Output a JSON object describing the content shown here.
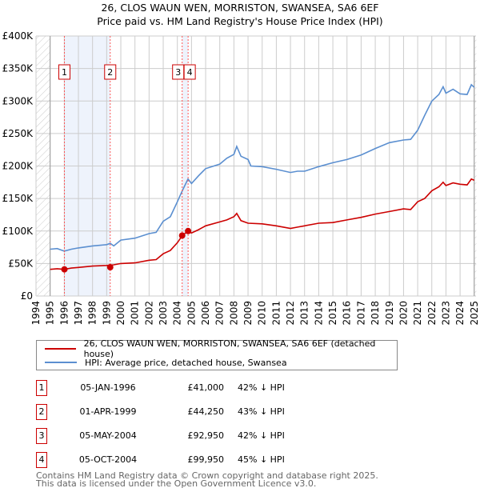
{
  "chart_data": {
    "type": "line",
    "title": "26, CLOS WAUN WEN, MORRISTON, SWANSEA, SA6 6EF",
    "subtitle": "Price paid vs. HM Land Registry's House Price Index (HPI)",
    "xlabel": "",
    "ylabel": "",
    "xlim": [
      1994,
      2025
    ],
    "ylim": [
      0,
      400000
    ],
    "x_ticks": [
      "1994",
      "1995",
      "1996",
      "1997",
      "1998",
      "1999",
      "2000",
      "2001",
      "2002",
      "2003",
      "2004",
      "2005",
      "2006",
      "2007",
      "2008",
      "2009",
      "2010",
      "2011",
      "2012",
      "2013",
      "2014",
      "2015",
      "2016",
      "2017",
      "2018",
      "2019",
      "2020",
      "2021",
      "2022",
      "2023",
      "2024",
      "2025"
    ],
    "y_ticks": [
      {
        "v": 0,
        "label": "£0"
      },
      {
        "v": 50000,
        "label": "£50K"
      },
      {
        "v": 100000,
        "label": "£100K"
      },
      {
        "v": 150000,
        "label": "£150K"
      },
      {
        "v": 200000,
        "label": "£200K"
      },
      {
        "v": 250000,
        "label": "£250K"
      },
      {
        "v": 300000,
        "label": "£300K"
      },
      {
        "v": 350000,
        "label": "£350K"
      },
      {
        "v": 400000,
        "label": "£400K"
      }
    ],
    "grid": true,
    "series": [
      {
        "name": "26, CLOS WAUN WEN, MORRISTON, SWANSEA, SA6 6EF (detached house)",
        "color": "#cc0000",
        "x": [
          1995,
          1995.5,
          1996,
          1996.5,
          1997,
          1998,
          1999,
          1999.5,
          2000,
          2001,
          2002,
          2002.5,
          2003,
          2003.5,
          2004,
          2004.35,
          2004.75,
          2005,
          2005.5,
          2006,
          2007,
          2007.5,
          2008,
          2008.2,
          2008.5,
          2009,
          2010,
          2011,
          2012,
          2012.5,
          2013,
          2014,
          2015,
          2016,
          2017,
          2018,
          2019,
          2020,
          2020.5,
          2021,
          2021.5,
          2022,
          2022.5,
          2022.8,
          2023,
          2023.5,
          2024,
          2024.5,
          2024.8,
          2025
        ],
        "y": [
          41000,
          42000,
          41000,
          43000,
          44000,
          46000,
          47000,
          48000,
          50000,
          51000,
          55000,
          56000,
          65000,
          70000,
          82000,
          93000,
          100000,
          97000,
          102000,
          108000,
          114000,
          117000,
          122000,
          127000,
          116000,
          112000,
          111000,
          108000,
          104000,
          106000,
          108000,
          112000,
          113000,
          117000,
          121000,
          126000,
          130000,
          134000,
          133000,
          145000,
          150000,
          162000,
          168000,
          175000,
          170000,
          174000,
          172000,
          171000,
          180000,
          178000
        ]
      },
      {
        "name": "HPI: Average price, detached house, Swansea",
        "color": "#5b8fd0",
        "x": [
          1995,
          1995.5,
          1996,
          1996.5,
          1997,
          1998,
          1999,
          1999.25,
          1999.5,
          2000,
          2001,
          2002,
          2002.5,
          2003,
          2003.5,
          2004,
          2004.35,
          2004.75,
          2005,
          2005.5,
          2006,
          2007,
          2007.5,
          2008,
          2008.2,
          2008.5,
          2009,
          2009.2,
          2010,
          2011,
          2012,
          2012.5,
          2013,
          2014,
          2015,
          2016,
          2017,
          2018,
          2019,
          2020,
          2020.5,
          2021,
          2021.5,
          2022,
          2022.5,
          2022.8,
          2023,
          2023.5,
          2024,
          2024.5,
          2024.8,
          2025
        ],
        "y": [
          72000,
          73000,
          69000,
          72000,
          74000,
          77000,
          79000,
          81000,
          77000,
          86000,
          89000,
          96000,
          98000,
          115000,
          122000,
          145000,
          162000,
          180000,
          173000,
          185000,
          196000,
          203000,
          212000,
          218000,
          230000,
          215000,
          210000,
          200000,
          199000,
          195000,
          190000,
          192000,
          192000,
          199000,
          205000,
          210000,
          217000,
          227000,
          236000,
          240000,
          241000,
          255000,
          278000,
          300000,
          310000,
          322000,
          312000,
          318000,
          311000,
          310000,
          325000,
          321000
        ]
      }
    ],
    "shaded_ranges": [
      [
        1996.01,
        1999.25
      ],
      [
        2004.34,
        2004.76
      ]
    ],
    "sales": [
      {
        "id": "1",
        "x": 1996.01,
        "y": 41000
      },
      {
        "id": "2",
        "x": 1999.25,
        "y": 44250
      },
      {
        "id": "3",
        "x": 2004.34,
        "y": 92950
      },
      {
        "id": "4",
        "x": 2004.76,
        "y": 99950
      }
    ],
    "legend_placement": "below"
  },
  "legend": [
    {
      "label": "26, CLOS WAUN WEN, MORRISTON, SWANSEA, SA6 6EF (detached house)",
      "color": "#cc0000"
    },
    {
      "label": "HPI: Average price, detached house, Swansea",
      "color": "#5b8fd0"
    }
  ],
  "table": [
    {
      "num": "1",
      "date": "05-JAN-1996",
      "price": "£41,000",
      "hpi": "42% ↓ HPI"
    },
    {
      "num": "2",
      "date": "01-APR-1999",
      "price": "£44,250",
      "hpi": "43% ↓ HPI"
    },
    {
      "num": "3",
      "date": "05-MAY-2004",
      "price": "£92,950",
      "hpi": "42% ↓ HPI"
    },
    {
      "num": "4",
      "date": "05-OCT-2004",
      "price": "£99,950",
      "hpi": "45% ↓ HPI"
    }
  ],
  "footer": {
    "line1": "Contains HM Land Registry data © Crown copyright and database right 2025.",
    "line2": "This data is licensed under the Open Government Licence v3.0."
  }
}
